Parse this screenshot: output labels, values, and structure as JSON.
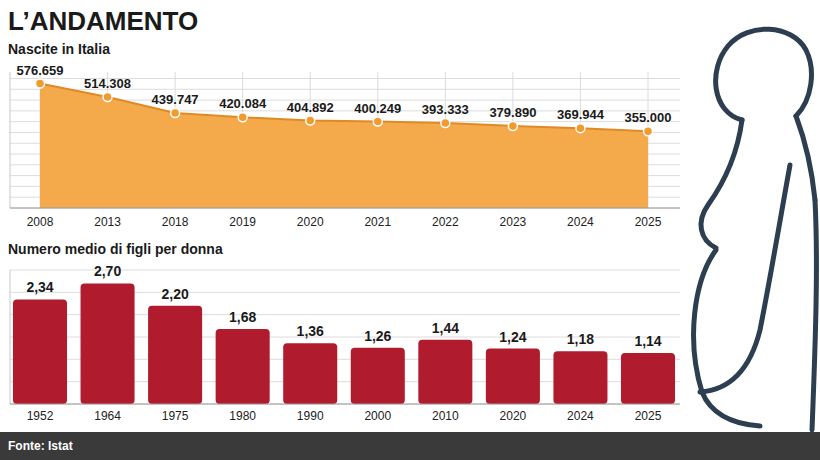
{
  "title": "L’ANDAMENTO",
  "chart_data": [
    {
      "type": "area",
      "title": "Nascite in Italia",
      "categories": [
        "2008",
        "2013",
        "2018",
        "2019",
        "2020",
        "2021",
        "2022",
        "2023",
        "2024",
        "2025"
      ],
      "values": [
        576659,
        514308,
        439747,
        420084,
        404892,
        400249,
        393333,
        379890,
        369944,
        355000
      ],
      "value_labels": [
        "576.659",
        "514.308",
        "439.747",
        "420.084",
        "404.892",
        "400.249",
        "393.333",
        "379.890",
        "369.944",
        "355.000"
      ],
      "color": "#f4a94a",
      "ylim": [
        0,
        630000
      ],
      "yticks": [
        0,
        50000,
        100000,
        150000,
        200000,
        250000,
        300000,
        350000,
        400000,
        450000,
        500000,
        550000,
        600000
      ],
      "grid": true,
      "tick_labels": "x",
      "data_labels": true,
      "marker": "circle"
    },
    {
      "type": "bar",
      "title": "Numero medio di figli per donna",
      "categories": [
        "1952",
        "1964",
        "1975",
        "1980",
        "1990",
        "2000",
        "2010",
        "2020",
        "2024",
        "2025"
      ],
      "values": [
        2.34,
        2.7,
        2.2,
        1.68,
        1.36,
        1.26,
        1.44,
        1.24,
        1.18,
        1.14
      ],
      "value_labels": [
        "2,34",
        "2,70",
        "2,20",
        "1,68",
        "1,36",
        "1,26",
        "1,44",
        "1,24",
        "1,18",
        "1,14"
      ],
      "color": "#b01c2e",
      "ylim": [
        0,
        3
      ],
      "yticks": [
        0,
        0.5,
        1,
        1.5,
        2,
        2.5,
        3
      ],
      "grid": true,
      "tick_labels": "x",
      "data_labels": true
    }
  ],
  "source": "Fonte: Istat"
}
